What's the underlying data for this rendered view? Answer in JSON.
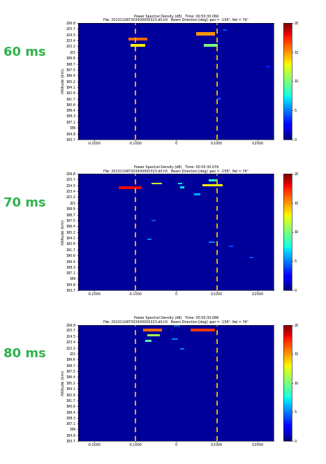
{
  "chart_data": [
    {
      "type": "heatmap",
      "annotation": "60 ms",
      "title": "Power Spectral Density (dB)   Time: 00:50:30.066\nFile: 20101106T003400000323.d0.h5   Beam Direction [deg]: φaz = -158°, θel = 76°",
      "ylabel": "Altitude (km)",
      "xlim": [
        -0.24,
        0.24
      ],
      "xticks": [
        {
          "value": -0.2,
          "label": "-0.2000"
        },
        {
          "value": -0.1,
          "label": "-0.1000"
        },
        0,
        {
          "value": 0.1,
          "label": "0.1000"
        },
        {
          "value": 0.2,
          "label": "0.2000"
        }
      ],
      "ylim": [
        183.7,
        206.8
      ],
      "yticks": [
        183.7,
        184.8,
        186,
        187.1,
        188.3,
        189.4,
        190.6,
        191.7,
        192.9,
        194.1,
        195.2,
        196.4,
        197.5,
        198.7,
        199.9,
        201,
        202.2,
        203.4,
        204.5,
        205.7,
        206.8
      ],
      "colorbar": {
        "range": [
          0,
          20
        ],
        "ticks": [
          0,
          5,
          10,
          15,
          20
        ]
      },
      "background": 0.5,
      "reference_lines": {
        "x": [
          -0.1,
          0.1
        ],
        "color": "#FFC000"
      },
      "cells": [
        {
          "x": [
            -0.117,
            -0.071
          ],
          "y": [
            203.3,
            203.9
          ],
          "value": 16
        },
        {
          "x": [
            -0.112,
            -0.076
          ],
          "y": [
            202.1,
            202.6
          ],
          "value": 13
        },
        {
          "x": [
            0.05,
            0.096
          ],
          "y": [
            204.4,
            205.0
          ],
          "value": 15
        },
        {
          "x": [
            0.069,
            0.102
          ],
          "y": [
            202.1,
            202.6
          ],
          "value": 10
        },
        {
          "x": [
            0.115,
            0.125
          ],
          "y": [
            205.3,
            205.6
          ],
          "value": 4
        },
        {
          "x": [
            0.1,
            0.11
          ],
          "y": [
            191.6,
            191.9
          ],
          "value": 4
        },
        {
          "x": [
            0.22,
            0.23
          ],
          "y": [
            198.0,
            198.3
          ],
          "value": 3
        }
      ]
    },
    {
      "type": "heatmap",
      "annotation": "70 ms",
      "title": "Power Spectral Density (dB)   Time: 00:50:30.076\nFile: 20101106T003400000323.d0.h5   Beam Direction [deg]: φaz = -158°, θel = 76°",
      "ylabel": "Altitude (km)",
      "xlim": [
        -0.24,
        0.24
      ],
      "xticks": [
        {
          "value": -0.2,
          "label": "-0.2000"
        },
        {
          "value": -0.1,
          "label": "-0.1000"
        },
        0,
        {
          "value": 0.1,
          "label": "0.1000"
        },
        {
          "value": 0.2,
          "label": "0.2000"
        }
      ],
      "ylim": [
        183.7,
        206.8
      ],
      "yticks": [
        183.7,
        184.8,
        186,
        187.1,
        188.3,
        189.4,
        190.6,
        191.7,
        192.9,
        194.1,
        195.2,
        196.4,
        197.5,
        198.7,
        199.9,
        201,
        202.2,
        203.4,
        204.5,
        205.7,
        206.8
      ],
      "colorbar": {
        "range": [
          0,
          20
        ],
        "ticks": [
          0,
          5,
          10,
          15,
          20
        ]
      },
      "background": 0.5,
      "reference_lines": {
        "x": [
          -0.1,
          0.1
        ],
        "color": "#FFC000"
      },
      "cells": [
        {
          "x": [
            -0.14,
            -0.085
          ],
          "y": [
            203.8,
            204.3
          ],
          "value": 18
        },
        {
          "x": [
            -0.06,
            -0.035
          ],
          "y": [
            204.7,
            205.1
          ],
          "value": 12
        },
        {
          "x": [
            0.005,
            0.015
          ],
          "y": [
            204.7,
            205.1
          ],
          "value": 7
        },
        {
          "x": [
            0.01,
            0.02
          ],
          "y": [
            203.9,
            204.3
          ],
          "value": 7
        },
        {
          "x": [
            0.065,
            0.115
          ],
          "y": [
            204.3,
            204.8
          ],
          "value": 13
        },
        {
          "x": [
            0.08,
            0.1
          ],
          "y": [
            205.3,
            205.7
          ],
          "value": 8
        },
        {
          "x": [
            0.045,
            0.06
          ],
          "y": [
            202.6,
            203.0
          ],
          "value": 6
        },
        {
          "x": [
            0.08,
            0.095
          ],
          "y": [
            193.1,
            193.4
          ],
          "value": 5
        },
        {
          "x": [
            -0.06,
            -0.05
          ],
          "y": [
            197.4,
            197.7
          ],
          "value": 4
        },
        {
          "x": [
            -0.07,
            -0.06
          ],
          "y": [
            193.6,
            193.9
          ],
          "value": 5
        },
        {
          "x": [
            0.13,
            0.14
          ],
          "y": [
            192.3,
            192.6
          ],
          "value": 4
        },
        {
          "x": [
            0.18,
            0.19
          ],
          "y": [
            190.0,
            190.3
          ],
          "value": 4
        }
      ]
    },
    {
      "type": "heatmap",
      "annotation": "80 ms",
      "title": "Power Spectral Density (dB)   Time: 00:50:30.086\nFile: 20101106T003400000323.d0.h5   Beam Direction [deg]: φaz = -158°, θel = 76°",
      "ylabel": "Altitude (km)",
      "xlim": [
        -0.24,
        0.24
      ],
      "xticks": [
        {
          "value": -0.2,
          "label": "-0.2000"
        },
        {
          "value": -0.1,
          "label": "-0.1000"
        },
        0,
        {
          "value": 0.1,
          "label": "0.1000"
        },
        {
          "value": 0.2,
          "label": "0.2000"
        }
      ],
      "ylim": [
        183.7,
        206.8
      ],
      "yticks": [
        183.7,
        184.8,
        186,
        187.1,
        188.3,
        189.4,
        190.6,
        191.7,
        192.9,
        194.1,
        195.2,
        196.4,
        197.5,
        198.7,
        199.9,
        201,
        202.2,
        203.4,
        204.5,
        205.7,
        206.8
      ],
      "colorbar": {
        "range": [
          0,
          20
        ],
        "ticks": [
          0,
          5,
          10,
          15,
          20
        ]
      },
      "background": 0.5,
      "reference_lines": {
        "x": [
          -0.1,
          0.1
        ],
        "color": "#FFC000"
      },
      "cells": [
        {
          "x": [
            -0.08,
            -0.035
          ],
          "y": [
            205.5,
            206.0
          ],
          "value": 16
        },
        {
          "x": [
            -0.07,
            -0.04
          ],
          "y": [
            204.5,
            204.9
          ],
          "value": 11
        },
        {
          "x": [
            -0.075,
            -0.06
          ],
          "y": [
            203.4,
            203.8
          ],
          "value": 9
        },
        {
          "x": [
            0.035,
            0.095
          ],
          "y": [
            205.5,
            206.0
          ],
          "value": 17
        },
        {
          "x": [
            -0.005,
            0.01
          ],
          "y": [
            206.4,
            206.7
          ],
          "value": 5
        },
        {
          "x": [
            -0.01,
            0.005
          ],
          "y": [
            203.8,
            204.1
          ],
          "value": 5
        },
        {
          "x": [
            0.01,
            0.02
          ],
          "y": [
            201.8,
            202.1
          ],
          "value": 5
        }
      ]
    }
  ]
}
